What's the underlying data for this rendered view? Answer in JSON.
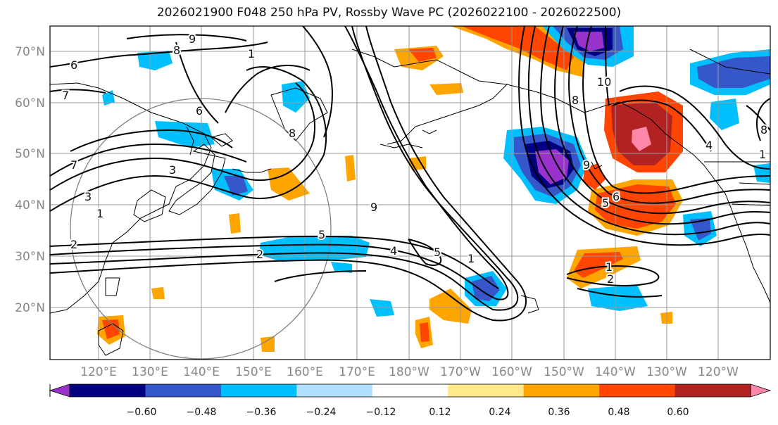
{
  "title": "2026021900 F048 250 hPa PV, Rossby Wave PC (2026022100 - 2026022500)",
  "latitude_labels": [
    "70°N",
    "60°N",
    "50°N",
    "40°N",
    "30°N",
    "20°N"
  ],
  "longitude_labels": [
    "120°E",
    "130°E",
    "140°E",
    "150°E",
    "160°E",
    "170°E",
    "180°W",
    "170°W",
    "160°W",
    "150°W",
    "140°W",
    "130°W",
    "120°W"
  ],
  "colorbar": {
    "tick_labels": [
      "−0.60",
      "−0.48",
      "−0.36",
      "−0.24",
      "−0.12",
      "0.12",
      "0.24",
      "0.36",
      "0.48",
      "0.60"
    ],
    "colors": [
      "#9932cc",
      "#000080",
      "#3657c9",
      "#00bfff",
      "#b0e0ff",
      "#ffffff",
      "#ffe98a",
      "#ffa500",
      "#ff4500",
      "#b22222",
      "#ff88aa"
    ]
  },
  "contour_labels": [
    "9",
    "8",
    "6",
    "7",
    "1",
    "6",
    "8",
    "7",
    "3",
    "3",
    "1",
    "2",
    "2",
    "5",
    "4",
    "5",
    "1",
    "9",
    "10",
    "8",
    "9",
    "6",
    "5",
    "1",
    "2",
    "4",
    "8",
    "1"
  ],
  "colors": {
    "contour": "#000000",
    "grid": "#999999",
    "axis_label": "#888888",
    "circle": "#808080"
  }
}
